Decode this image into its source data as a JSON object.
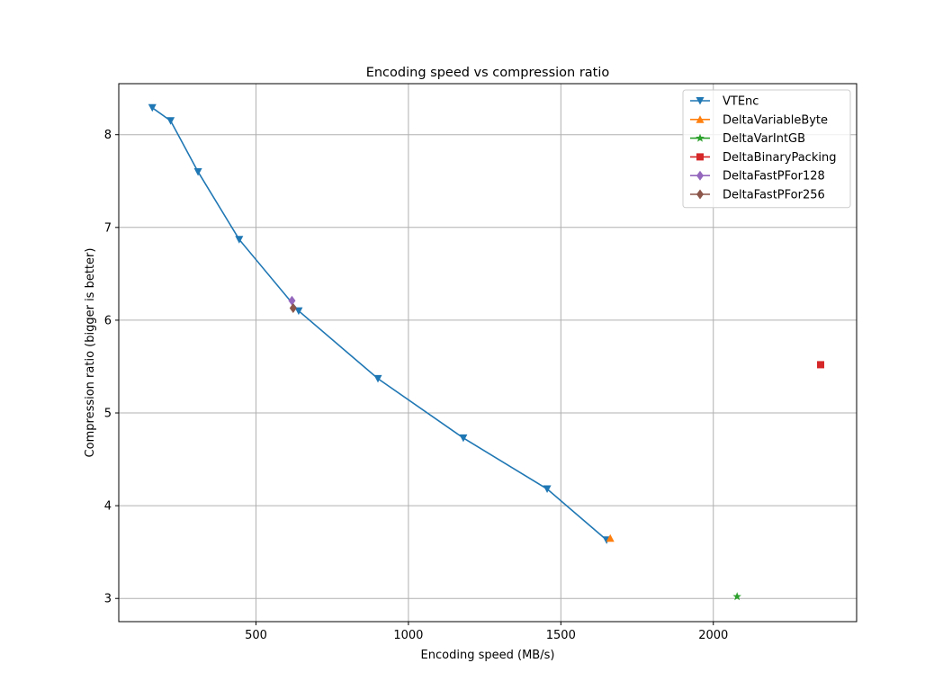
{
  "chart_data": {
    "type": "line",
    "title": "Encoding speed vs compression ratio",
    "xlabel": "Encoding speed (MB/s)",
    "ylabel": "Compression ratio (bigger is better)",
    "xlim": [
      50,
      2470
    ],
    "ylim": [
      2.75,
      8.55
    ],
    "xticks": [
      500,
      1000,
      1500,
      2000
    ],
    "yticks": [
      3,
      4,
      5,
      6,
      7,
      8
    ],
    "grid": true,
    "legend_position": "upper right",
    "series": [
      {
        "name": "VTEnc",
        "color": "#1f77b4",
        "marker": "triangle-down",
        "line": true,
        "x": [
          160,
          220,
          310,
          445,
          640,
          900,
          1180,
          1455,
          1650
        ],
        "y": [
          8.29,
          8.15,
          7.6,
          6.87,
          6.1,
          5.37,
          4.73,
          4.18,
          3.63
        ]
      },
      {
        "name": "DeltaVariableByte",
        "color": "#ff7f0e",
        "marker": "triangle-up",
        "line": false,
        "x": [
          1662
        ],
        "y": [
          3.65
        ]
      },
      {
        "name": "DeltaVarIntGB",
        "color": "#2ca02c",
        "marker": "star",
        "line": false,
        "x": [
          2078
        ],
        "y": [
          3.02
        ]
      },
      {
        "name": "DeltaBinaryPacking",
        "color": "#d62728",
        "marker": "square",
        "line": false,
        "x": [
          2352
        ],
        "y": [
          5.52
        ]
      },
      {
        "name": "DeltaFastPFor128",
        "color": "#9467bd",
        "marker": "diamond",
        "line": false,
        "x": [
          618
        ],
        "y": [
          6.21
        ]
      },
      {
        "name": "DeltaFastPFor256",
        "color": "#8c564b",
        "marker": "diamond",
        "line": false,
        "x": [
          622
        ],
        "y": [
          6.13
        ]
      }
    ]
  }
}
